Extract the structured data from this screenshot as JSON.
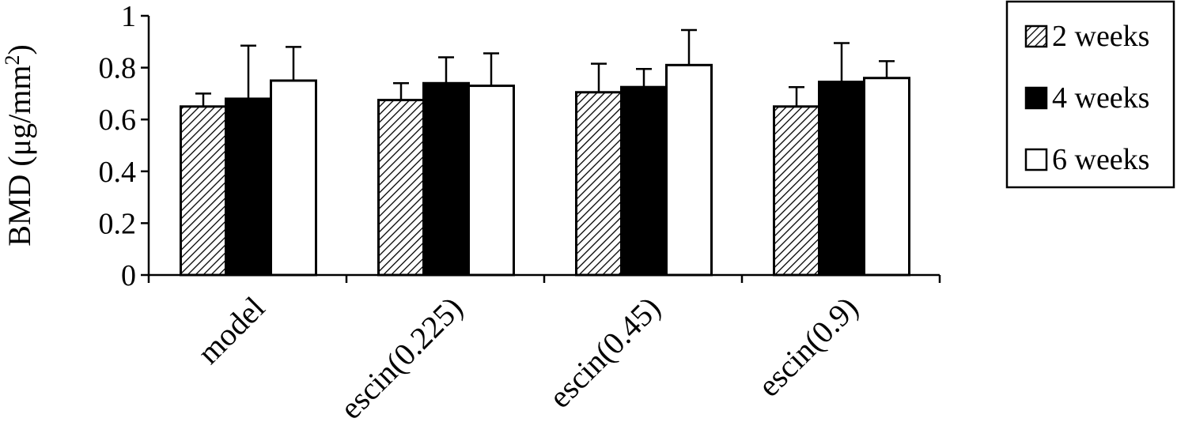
{
  "chart_data": {
    "type": "bar",
    "title": "",
    "xlabel": "",
    "ylabel": "BMD (μg/mm",
    "ylabel_superscript": "2",
    "ylabel_suffix": ")",
    "ylim": [
      0,
      1
    ],
    "yticks": [
      0,
      0.2,
      0.4,
      0.6,
      0.8,
      1
    ],
    "ytick_labels": [
      "0",
      "0.2",
      "0.4",
      "0.6",
      "0.8",
      "1"
    ],
    "categories": [
      "model",
      "escin(0.225)",
      "escin(0.45)",
      "escin(0.9)"
    ],
    "error_bars": "upper",
    "legend_position": "top-right",
    "grid": false,
    "series": [
      {
        "name": "2 weeks",
        "fill": "hatched",
        "values": [
          0.65,
          0.675,
          0.705,
          0.65
        ],
        "errors": [
          0.05,
          0.065,
          0.11,
          0.075
        ]
      },
      {
        "name": "4 weeks",
        "fill": "#000000",
        "values": [
          0.68,
          0.74,
          0.725,
          0.745
        ],
        "errors": [
          0.205,
          0.1,
          0.07,
          0.15
        ]
      },
      {
        "name": "6 weeks",
        "fill": "#ffffff",
        "values": [
          0.75,
          0.73,
          0.81,
          0.76
        ],
        "errors": [
          0.13,
          0.125,
          0.135,
          0.065
        ]
      }
    ]
  }
}
